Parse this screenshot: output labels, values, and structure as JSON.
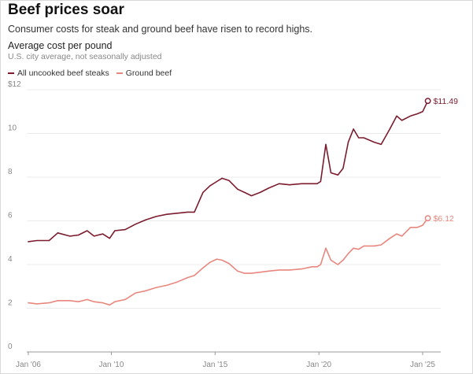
{
  "title": "Beef prices soar",
  "subtitle": "Consumer costs for steak and ground beef have risen to record highs.",
  "chart_data": {
    "type": "line",
    "title": "Average cost per pound",
    "note": "U.S. city average, not seasonally adjusted",
    "xlabel": "",
    "ylabel": "",
    "ylim": [
      0,
      12
    ],
    "xlim": [
      "2006-01",
      "2025-06"
    ],
    "y_ticks": [
      {
        "value": 0,
        "label": "0"
      },
      {
        "value": 2,
        "label": "2"
      },
      {
        "value": 4,
        "label": "4"
      },
      {
        "value": 6,
        "label": "6"
      },
      {
        "value": 8,
        "label": "8"
      },
      {
        "value": 10,
        "label": "10"
      },
      {
        "value": 12,
        "label": "$12"
      }
    ],
    "x_ticks": [
      {
        "value": "2006-01",
        "label": "Jan '06"
      },
      {
        "value": "2010-01",
        "label": "Jan '10"
      },
      {
        "value": "2015-01",
        "label": "Jan '15"
      },
      {
        "value": "2020-01",
        "label": "Jan '20"
      },
      {
        "value": "2025-01",
        "label": "Jan '25"
      }
    ],
    "grid": true,
    "legend_position": "top-left",
    "series": [
      {
        "name": "All uncooked beef steaks",
        "color": "#7b1c2e",
        "end_label": "$11.49",
        "points": [
          [
            "2006-01",
            5.05
          ],
          [
            "2006-06",
            5.1
          ],
          [
            "2007-01",
            5.1
          ],
          [
            "2007-06",
            5.45
          ],
          [
            "2008-01",
            5.3
          ],
          [
            "2008-06",
            5.35
          ],
          [
            "2008-11",
            5.55
          ],
          [
            "2009-03",
            5.3
          ],
          [
            "2009-08",
            5.4
          ],
          [
            "2009-12",
            5.2
          ],
          [
            "2010-03",
            5.55
          ],
          [
            "2010-09",
            5.6
          ],
          [
            "2011-03",
            5.85
          ],
          [
            "2011-09",
            6.05
          ],
          [
            "2012-03",
            6.2
          ],
          [
            "2012-09",
            6.3
          ],
          [
            "2013-03",
            6.35
          ],
          [
            "2013-09",
            6.4
          ],
          [
            "2014-01",
            6.4
          ],
          [
            "2014-06",
            7.3
          ],
          [
            "2014-10",
            7.6
          ],
          [
            "2015-02",
            7.8
          ],
          [
            "2015-05",
            7.95
          ],
          [
            "2015-09",
            7.85
          ],
          [
            "2016-02",
            7.45
          ],
          [
            "2016-06",
            7.3
          ],
          [
            "2016-10",
            7.15
          ],
          [
            "2017-03",
            7.3
          ],
          [
            "2017-08",
            7.5
          ],
          [
            "2018-02",
            7.7
          ],
          [
            "2018-08",
            7.65
          ],
          [
            "2019-03",
            7.7
          ],
          [
            "2019-09",
            7.7
          ],
          [
            "2019-12",
            7.7
          ],
          [
            "2020-02",
            7.8
          ],
          [
            "2020-05",
            9.5
          ],
          [
            "2020-08",
            8.2
          ],
          [
            "2020-12",
            8.1
          ],
          [
            "2021-03",
            8.4
          ],
          [
            "2021-06",
            9.6
          ],
          [
            "2021-09",
            10.2
          ],
          [
            "2021-12",
            9.8
          ],
          [
            "2022-03",
            9.8
          ],
          [
            "2022-09",
            9.6
          ],
          [
            "2023-01",
            9.5
          ],
          [
            "2023-06",
            10.2
          ],
          [
            "2023-10",
            10.8
          ],
          [
            "2024-01",
            10.6
          ],
          [
            "2024-06",
            10.8
          ],
          [
            "2024-10",
            10.9
          ],
          [
            "2025-01",
            11.0
          ],
          [
            "2025-04",
            11.49
          ]
        ]
      },
      {
        "name": "Ground beef",
        "color": "#e8877e",
        "end_label": "$6.12",
        "points": [
          [
            "2006-01",
            2.25
          ],
          [
            "2006-06",
            2.2
          ],
          [
            "2007-01",
            2.25
          ],
          [
            "2007-06",
            2.35
          ],
          [
            "2008-01",
            2.35
          ],
          [
            "2008-06",
            2.3
          ],
          [
            "2008-11",
            2.4
          ],
          [
            "2009-03",
            2.3
          ],
          [
            "2009-08",
            2.25
          ],
          [
            "2009-12",
            2.15
          ],
          [
            "2010-03",
            2.3
          ],
          [
            "2010-09",
            2.4
          ],
          [
            "2011-03",
            2.7
          ],
          [
            "2011-09",
            2.8
          ],
          [
            "2012-03",
            2.95
          ],
          [
            "2012-09",
            3.05
          ],
          [
            "2013-03",
            3.2
          ],
          [
            "2013-09",
            3.4
          ],
          [
            "2014-01",
            3.5
          ],
          [
            "2014-06",
            3.85
          ],
          [
            "2014-10",
            4.1
          ],
          [
            "2015-02",
            4.25
          ],
          [
            "2015-05",
            4.2
          ],
          [
            "2015-09",
            4.05
          ],
          [
            "2016-02",
            3.7
          ],
          [
            "2016-06",
            3.6
          ],
          [
            "2016-10",
            3.6
          ],
          [
            "2017-03",
            3.65
          ],
          [
            "2017-08",
            3.7
          ],
          [
            "2018-02",
            3.75
          ],
          [
            "2018-08",
            3.75
          ],
          [
            "2019-03",
            3.8
          ],
          [
            "2019-09",
            3.9
          ],
          [
            "2019-12",
            3.9
          ],
          [
            "2020-02",
            4.0
          ],
          [
            "2020-05",
            4.75
          ],
          [
            "2020-08",
            4.2
          ],
          [
            "2020-12",
            4.0
          ],
          [
            "2021-03",
            4.2
          ],
          [
            "2021-06",
            4.5
          ],
          [
            "2021-09",
            4.75
          ],
          [
            "2021-12",
            4.7
          ],
          [
            "2022-03",
            4.85
          ],
          [
            "2022-09",
            4.85
          ],
          [
            "2023-01",
            4.9
          ],
          [
            "2023-06",
            5.2
          ],
          [
            "2023-10",
            5.4
          ],
          [
            "2024-01",
            5.3
          ],
          [
            "2024-06",
            5.7
          ],
          [
            "2024-10",
            5.7
          ],
          [
            "2025-01",
            5.8
          ],
          [
            "2025-04",
            6.12
          ]
        ]
      }
    ]
  }
}
